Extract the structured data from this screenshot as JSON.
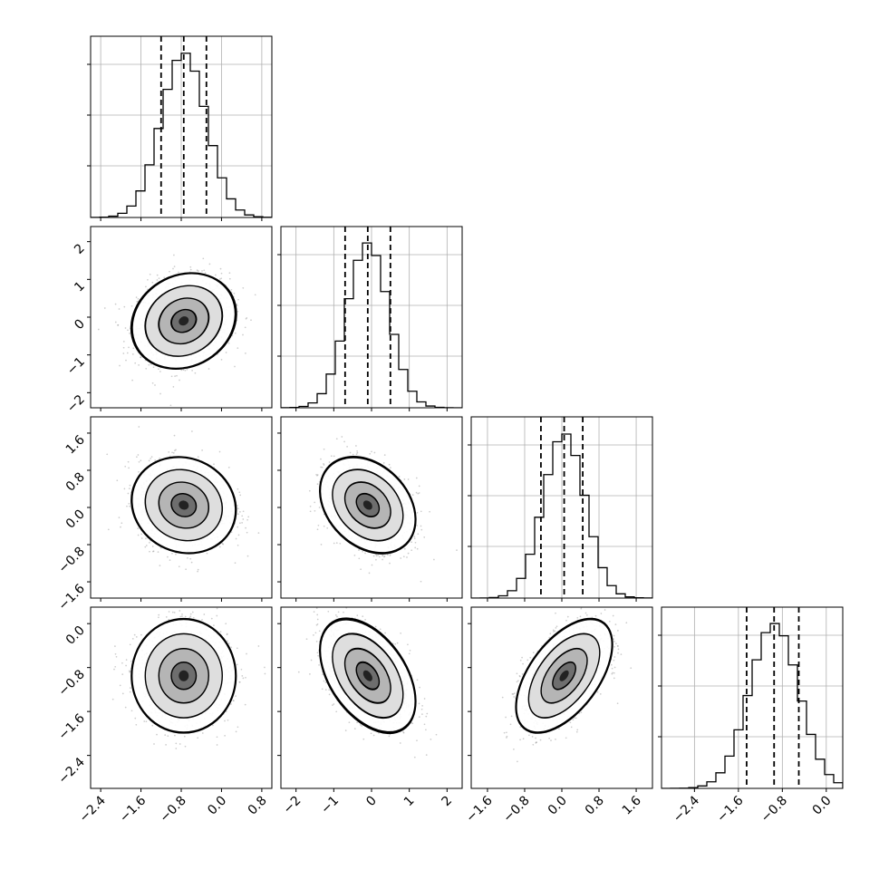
{
  "chart_data": {
    "type": "corner",
    "grid": true,
    "colors": {
      "ink": "#000000",
      "grid": "#b0b0b0",
      "points": "#9a9a9a"
    },
    "quantiles": [
      0.16,
      0.5,
      0.84
    ],
    "params": [
      {
        "index": 0,
        "mean": -0.75,
        "sd": 0.45,
        "range": [
          -2.6,
          1.0
        ],
        "ticks": [
          -2.4,
          -1.6,
          -0.8,
          0.0,
          0.8
        ],
        "tick_labels": [
          "−2.4",
          "−1.6",
          "−0.8",
          "0.0",
          "0.8"
        ],
        "quantile_values": [
          -1.2,
          -0.75,
          -0.3
        ]
      },
      {
        "index": 1,
        "mean": -0.1,
        "sd": 0.55,
        "range": [
          -2.4,
          2.4
        ],
        "ticks": [
          -2,
          -1,
          0,
          1,
          2
        ],
        "tick_labels": [
          "−2",
          "−1",
          "0",
          "1",
          "2"
        ],
        "quantile_values": [
          -0.7,
          -0.1,
          0.5
        ]
      },
      {
        "index": 2,
        "mean": 0.05,
        "sd": 0.45,
        "range": [
          -1.95,
          1.95
        ],
        "ticks": [
          -1.6,
          -0.8,
          0.0,
          0.8,
          1.6
        ],
        "tick_labels": [
          "−1.6",
          "−0.8",
          "0.0",
          "0.8",
          "1.6"
        ],
        "quantile_values": [
          -0.45,
          0.05,
          0.45
        ]
      },
      {
        "index": 3,
        "mean": -0.95,
        "sd": 0.45,
        "range": [
          -3.0,
          0.3
        ],
        "ticks": [
          -2.4,
          -1.6,
          -0.8,
          0.0
        ],
        "tick_labels": [
          "−2.4",
          "−1.6",
          "−0.8",
          "0.0"
        ],
        "quantile_values": [
          -1.45,
          -0.95,
          -0.5
        ]
      }
    ],
    "correlations": [
      {
        "pair": [
          0,
          1
        ],
        "rho": 0.15
      },
      {
        "pair": [
          0,
          2
        ],
        "rho": -0.1
      },
      {
        "pair": [
          1,
          2
        ],
        "rho": -0.3
      },
      {
        "pair": [
          0,
          3
        ],
        "rho": 0.0
      },
      {
        "pair": [
          1,
          3
        ],
        "rho": -0.45
      },
      {
        "pair": [
          2,
          3
        ],
        "rho": 0.55
      }
    ]
  }
}
